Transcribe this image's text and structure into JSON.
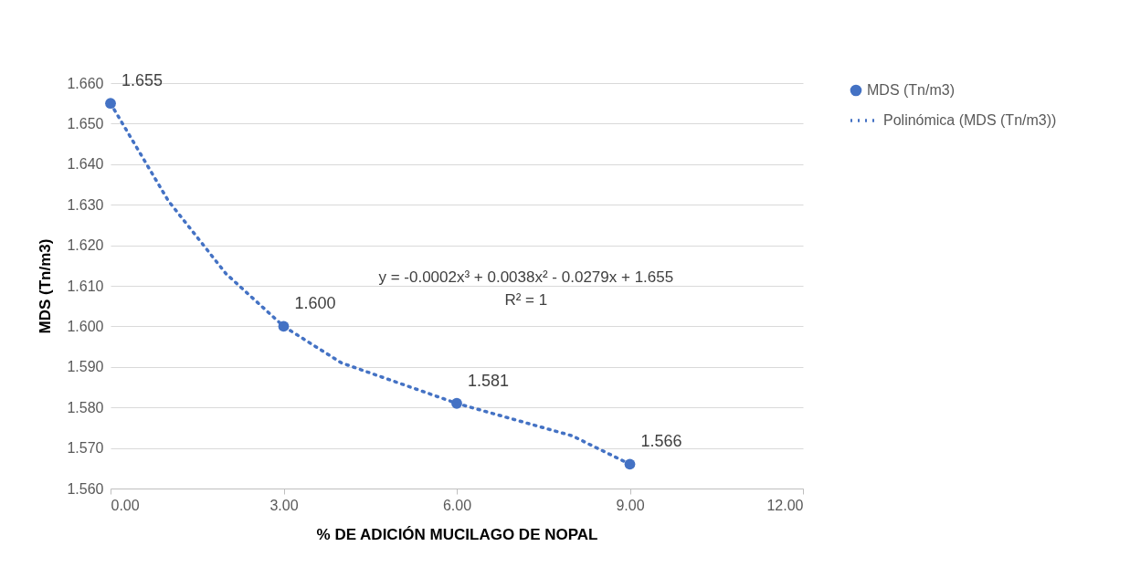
{
  "chart_data": {
    "type": "scatter",
    "xlabel": "% DE ADICIÓN MUCILAGO DE NOPAL",
    "ylabel": "MDS (Tn/m3)",
    "x": [
      0,
      3,
      6,
      9
    ],
    "series": [
      {
        "name": "MDS (Tn/m3)",
        "color": "#4472c4",
        "marker": "circle",
        "values": [
          1.655,
          1.6,
          1.581,
          1.566
        ],
        "value_labels": [
          "1.655",
          "1.600",
          "1.581",
          "1.566"
        ]
      },
      {
        "name": "Polinómica (MDS (Tn/m3))",
        "type": "line",
        "color": "#4472c4",
        "line_style": "dotted",
        "x": [
          0,
          1,
          2,
          3,
          4,
          5,
          6,
          7,
          8,
          9
        ],
        "values": [
          1.655,
          1.631,
          1.613,
          1.6,
          1.591,
          1.586,
          1.581,
          1.577,
          1.573,
          1.566
        ]
      }
    ],
    "annotations": [
      "y = -0.0002x³ + 0.0038x² - 0.0279x + 1.655",
      "R² = 1"
    ],
    "xlim": [
      0,
      12
    ],
    "ylim": [
      1.56,
      1.66
    ],
    "xticks": [
      {
        "value": 0,
        "label": "0.00"
      },
      {
        "value": 3,
        "label": "3.00"
      },
      {
        "value": 6,
        "label": "6.00"
      },
      {
        "value": 9,
        "label": "9.00"
      },
      {
        "value": 12,
        "label": "12.00"
      }
    ],
    "yticks": [
      {
        "value": 1.56,
        "label": "1.560"
      },
      {
        "value": 1.57,
        "label": "1.570"
      },
      {
        "value": 1.58,
        "label": "1.580"
      },
      {
        "value": 1.59,
        "label": "1.590"
      },
      {
        "value": 1.6,
        "label": "1.600"
      },
      {
        "value": 1.61,
        "label": "1.610"
      },
      {
        "value": 1.62,
        "label": "1.620"
      },
      {
        "value": 1.63,
        "label": "1.630"
      },
      {
        "value": 1.64,
        "label": "1.640"
      },
      {
        "value": 1.65,
        "label": "1.650"
      },
      {
        "value": 1.66,
        "label": "1.660"
      }
    ],
    "grid": "y",
    "legend": "right"
  }
}
